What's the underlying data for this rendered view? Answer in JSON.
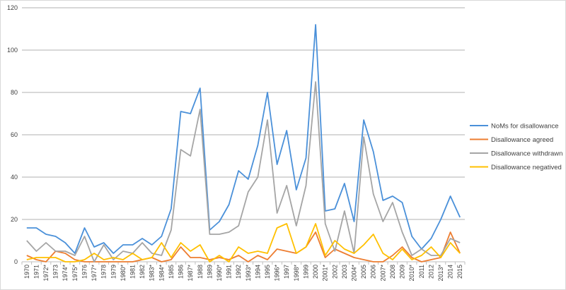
{
  "chart_data": {
    "type": "line",
    "title": "",
    "xlabel": "",
    "ylabel": "",
    "ylim": [
      0,
      120
    ],
    "yticks": [
      0,
      20,
      40,
      60,
      80,
      100,
      120
    ],
    "grid": true,
    "legend_position": "right",
    "categories": [
      "1970",
      "1971",
      "1972*",
      "1973",
      "1974*",
      "1975*",
      "1976",
      "1977*",
      "1978",
      "1979",
      "1980*",
      "1981",
      "1982",
      "1983*",
      "1984*",
      "1985",
      "1986",
      "1987*",
      "1988",
      "1989",
      "1990*",
      "1991",
      "1992",
      "1993*",
      "1994",
      "1995",
      "1996*",
      "1997",
      "1998*",
      "1999",
      "2000",
      "2001*",
      "2002",
      "2003",
      "2004*",
      "2005",
      "2006",
      "2007*",
      "2008",
      "2009",
      "2010*",
      "2011",
      "2012",
      "2013*",
      "2014",
      "2015"
    ],
    "series": [
      {
        "name": "NoMs for disallowance",
        "color": "#4a90d9",
        "values": [
          16,
          16,
          13,
          12,
          9,
          4,
          16,
          7,
          9,
          4,
          8,
          8,
          11,
          8,
          12,
          25,
          71,
          70,
          82,
          15,
          19,
          27,
          43,
          39,
          55,
          80,
          46,
          62,
          34,
          49,
          112,
          24,
          25,
          37,
          19,
          67,
          52,
          29,
          31,
          28,
          12,
          6,
          11,
          20,
          31,
          21
        ]
      },
      {
        "name": "Disallowance agreed",
        "color": "#ed7d31",
        "values": [
          3,
          1,
          0,
          5,
          4,
          1,
          0,
          0,
          0,
          0,
          0,
          0,
          1,
          2,
          0,
          1,
          7,
          2,
          2,
          1,
          2,
          1,
          3,
          0,
          3,
          1,
          6,
          5,
          4,
          7,
          14,
          2,
          6,
          4,
          2,
          1,
          0,
          0,
          3,
          7,
          2,
          0,
          1,
          2,
          14,
          4
        ]
      },
      {
        "name": "Disallowance withdrawn",
        "color": "#a5a5a5",
        "values": [
          10,
          5,
          9,
          5,
          5,
          3,
          12,
          0,
          8,
          1,
          5,
          4,
          9,
          4,
          3,
          15,
          53,
          50,
          72,
          13,
          13,
          14,
          17,
          33,
          40,
          67,
          23,
          36,
          17,
          36,
          85,
          18,
          5,
          24,
          4,
          59,
          32,
          19,
          28,
          14,
          3,
          6,
          3,
          3,
          11,
          9
        ]
      },
      {
        "name": "Disallowance negatived",
        "color": "#ffc000",
        "values": [
          1,
          2,
          2,
          2,
          0,
          0,
          1,
          4,
          1,
          2,
          1,
          4,
          1,
          2,
          9,
          2,
          9,
          5,
          8,
          0,
          3,
          0,
          7,
          4,
          5,
          4,
          16,
          18,
          4,
          7,
          18,
          3,
          10,
          6,
          4,
          8,
          13,
          4,
          1,
          6,
          1,
          3,
          7,
          2,
          9,
          4
        ]
      }
    ]
  }
}
